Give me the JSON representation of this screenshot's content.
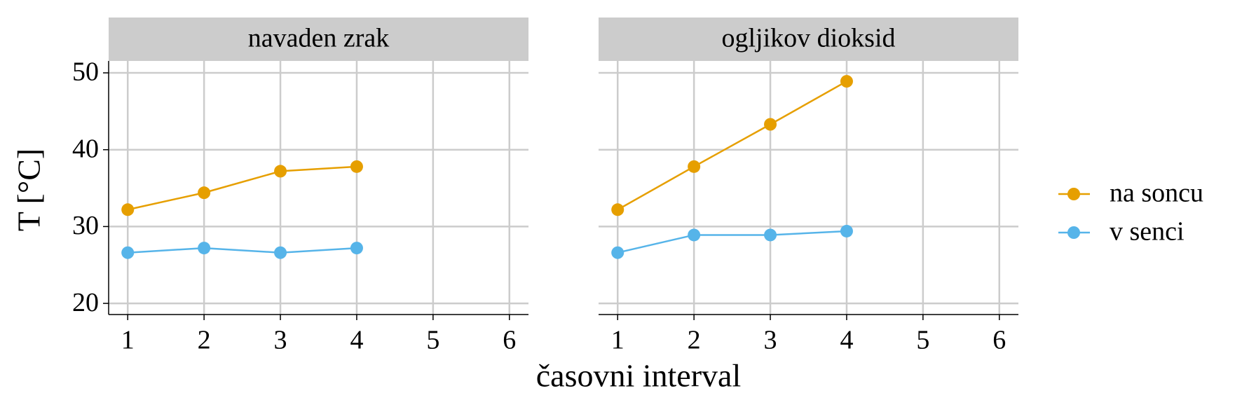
{
  "chart_data": [
    {
      "type": "line",
      "title": "navaden zrak",
      "x_label": "časovni interval",
      "y_label": "T [°C]",
      "x": [
        1,
        2,
        3,
        4
      ],
      "series": [
        {
          "name": "na soncu",
          "color": "#e69f00",
          "values": [
            32.2,
            34.4,
            37.2,
            37.8
          ]
        },
        {
          "name": "v senci",
          "color": "#56b4e9",
          "values": [
            26.6,
            27.2,
            26.6,
            27.2
          ]
        }
      ],
      "xlim": [
        0.75,
        6.25
      ],
      "xticks": [
        1,
        2,
        3,
        4,
        5,
        6
      ],
      "ylim": [
        18.55,
        51.55
      ],
      "yticks": [
        20,
        30,
        40,
        50
      ],
      "grid": true
    },
    {
      "type": "line",
      "title": "ogljikov dioksid",
      "x": [
        1,
        2,
        3,
        4
      ],
      "series": [
        {
          "name": "na soncu",
          "color": "#e69f00",
          "values": [
            32.2,
            37.8,
            43.3,
            48.9
          ]
        },
        {
          "name": "v senci",
          "color": "#56b4e9",
          "values": [
            26.6,
            28.9,
            28.9,
            29.4
          ]
        }
      ],
      "xlim": [
        0.75,
        6.25
      ],
      "xticks": [
        1,
        2,
        3,
        4,
        5,
        6
      ],
      "ylim": [
        18.55,
        51.55
      ],
      "yticks": [
        20,
        30,
        40,
        50
      ],
      "grid": true
    }
  ]
}
